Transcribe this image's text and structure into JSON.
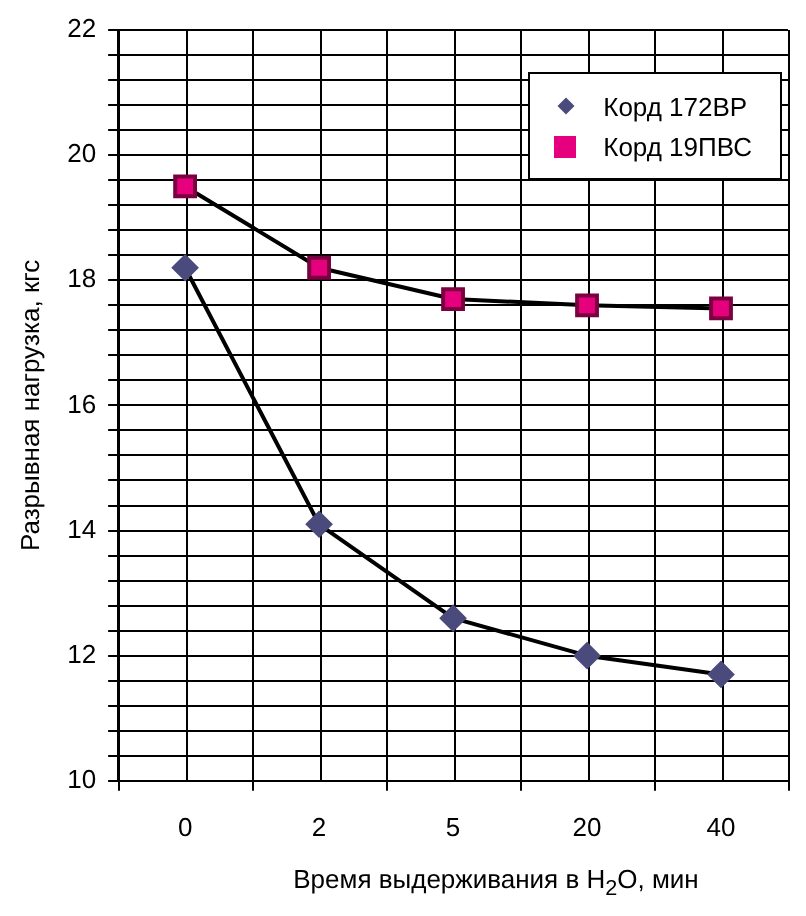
{
  "chart_data": {
    "type": "line",
    "xlabel": "Время выдерживания  в  H$_{2}$O, мин",
    "ylabel": "Разрывная нагрузка, кгс",
    "categories": [
      "0",
      "2",
      "5",
      "20",
      "40"
    ],
    "series": [
      {
        "name": "Корд 172ВР",
        "color": "#4b4a7c",
        "marker": "diamond",
        "values": [
          18.2,
          14.1,
          12.6,
          12.0,
          11.7
        ]
      },
      {
        "name": "Корд 19ПВС",
        "color": "#e6007e",
        "marker": "square",
        "values": [
          19.5,
          18.2,
          17.7,
          17.6,
          17.55
        ]
      }
    ],
    "ylim": [
      10,
      22
    ],
    "yticks": [
      10,
      {
        "value": 10.4,
        "label": null
      },
      {
        "value": 10.8,
        "label": null
      },
      {
        "value": 11.2,
        "label": null
      },
      {
        "value": 11.6,
        "label": null
      },
      12,
      {
        "value": 12.4,
        "label": null
      },
      {
        "value": 12.8,
        "label": null
      },
      {
        "value": 13.2,
        "label": null
      },
      {
        "value": 13.6,
        "label": null
      },
      14,
      {
        "value": 14.4,
        "label": null
      },
      {
        "value": 14.8,
        "label": null
      },
      {
        "value": 15.2,
        "label": null
      },
      {
        "value": 15.6,
        "label": null
      },
      16,
      {
        "value": 16.4,
        "label": null
      },
      {
        "value": 16.8,
        "label": null
      },
      {
        "value": 17.2,
        "label": null
      },
      {
        "value": 17.6,
        "label": null
      },
      18,
      {
        "value": 18.4,
        "label": null
      },
      {
        "value": 18.8,
        "label": null
      },
      {
        "value": 19.2,
        "label": null
      },
      {
        "value": 19.6,
        "label": null
      },
      20,
      {
        "value": 20.4,
        "label": null
      },
      {
        "value": 20.8,
        "label": null
      },
      {
        "value": 21.2,
        "label": null
      },
      {
        "value": 21.6,
        "label": null
      },
      22
    ],
    "grid": true,
    "legend": "top right",
    "line_style": "solid"
  }
}
